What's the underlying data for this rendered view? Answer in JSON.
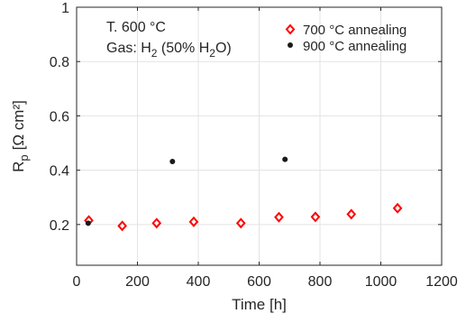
{
  "chart_data": {
    "type": "scatter",
    "x_label": "Time [h]",
    "y_label": {
      "main": "R",
      "subscript": "p",
      "units": "[Ω cm²]"
    },
    "xlim": [
      0,
      1200
    ],
    "ylim": [
      0.05,
      1.0
    ],
    "x_ticks": [
      0,
      200,
      400,
      600,
      800,
      1000,
      1200
    ],
    "y_ticks": [
      0.2,
      0.4,
      0.6,
      0.8,
      1
    ],
    "y_tick_labels": [
      "0.2",
      "0.4",
      "0.6",
      "0.8",
      "1"
    ],
    "grid": true,
    "legend_position": "top-right",
    "annotation": {
      "line1": "T. 600 °C",
      "line2": {
        "prefix": "Gas: H",
        "sub1": "2",
        "middle": " (50% H",
        "sub2": "2",
        "suffix": "O)"
      }
    },
    "series": [
      {
        "name": "700 °C annealing",
        "marker": "diamond-open",
        "color": "#ff0000",
        "points": [
          {
            "x": 40,
            "y": 0.215
          },
          {
            "x": 150,
            "y": 0.195
          },
          {
            "x": 263,
            "y": 0.205
          },
          {
            "x": 385,
            "y": 0.21
          },
          {
            "x": 540,
            "y": 0.205
          },
          {
            "x": 665,
            "y": 0.227
          },
          {
            "x": 785,
            "y": 0.228
          },
          {
            "x": 903,
            "y": 0.238
          },
          {
            "x": 1055,
            "y": 0.26
          }
        ]
      },
      {
        "name": "900 °C annealing",
        "marker": "dot",
        "color": "#1a1a1a",
        "points": [
          {
            "x": 38,
            "y": 0.205
          },
          {
            "x": 315,
            "y": 0.432
          },
          {
            "x": 685,
            "y": 0.44
          }
        ]
      }
    ]
  }
}
